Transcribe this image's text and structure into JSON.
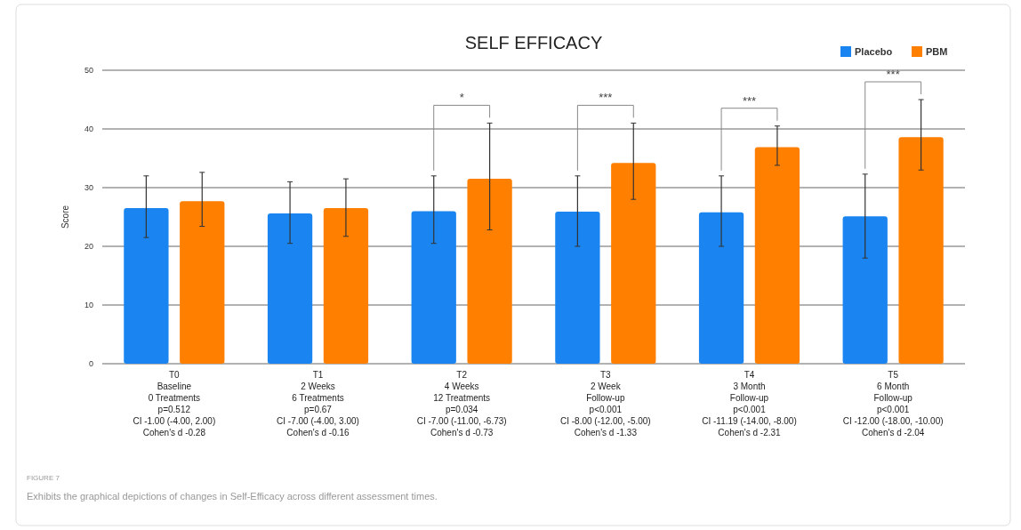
{
  "chart_data": {
    "type": "bar",
    "title": "SELF EFFICACY",
    "ylabel": "Score",
    "categories": [
      "T0\nBaseline\n0 Treatments\np=0.512\nCI -1.00 (-4.00, 2.00)\nCohen's d -0.28",
      "T1\n2 Weeks\n6 Treatments\np=0.67\nCI -7.00 (-4.00, 3.00)\nCohen's d -0.16",
      "T2\n4 Weeks\n12 Treatments\np=0.034\nCI -7.00 (-11.00, -6.73)\nCohen's d -0.73",
      "T3\n2 Week\nFollow-up\np<0.001\nCI -8.00 (-12.00, -5.00)\nCohen's d -1.33",
      "T4\n3 Month\nFollow-up\np<0.001\nCI -11.19 (-14.00, -8.00)\nCohen's d -2.31",
      "T5\n6 Month\nFollow-up\np<0.001\nCI -12.00 (-18.00, -10.00)\nCohen's d -2.04"
    ],
    "series": [
      {
        "name": "Placebo",
        "color": "#1a85f0",
        "values": [
          26.5,
          25.6,
          26,
          25.9,
          25.8,
          25.1
        ],
        "errors": [
          [
            21.5,
            32
          ],
          [
            20.5,
            31
          ],
          [
            20.5,
            32
          ],
          [
            20,
            32
          ],
          [
            20,
            32
          ],
          [
            18,
            32.3
          ]
        ]
      },
      {
        "name": "PBM",
        "color": "#ff7f00",
        "values": [
          27.7,
          26.5,
          31.5,
          34.2,
          36.9,
          38.6
        ],
        "errors": [
          [
            23.4,
            32.6
          ],
          [
            21.7,
            31.5
          ],
          [
            22.8,
            41
          ],
          [
            28,
            41
          ],
          [
            33.8,
            40.5
          ],
          [
            33,
            45
          ]
        ]
      }
    ],
    "ylim": [
      0,
      50
    ],
    "yticks": [
      0,
      10,
      20,
      30,
      40,
      50
    ],
    "grid": "y",
    "legend": "top right",
    "annotations": [
      "*",
      "***",
      "***",
      "***",
      "FIGURE 7",
      "Exhibits the graphical depictions of changes in Self-Efficacy across different assessment times."
    ]
  }
}
